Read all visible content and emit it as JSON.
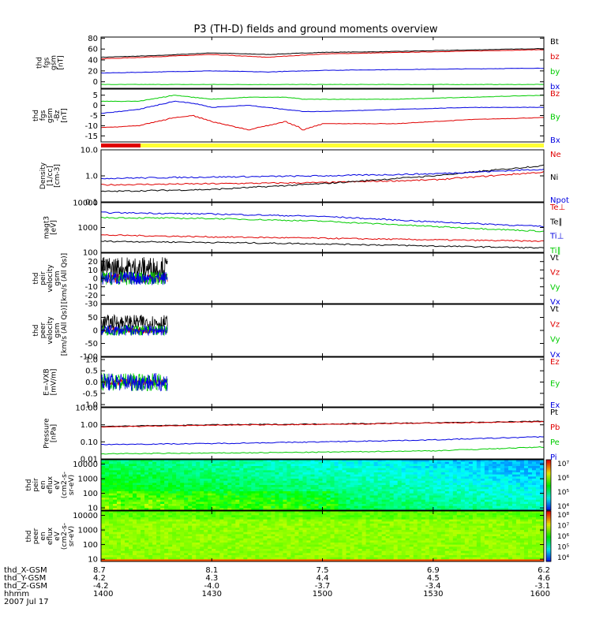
{
  "title": "P3 (TH-D) fields and ground moments overview",
  "footer": {
    "rows": [
      {
        "label": "thd_X-GSM",
        "values": [
          "8.7",
          "8.1",
          "7.5",
          "6.9",
          "6.2"
        ]
      },
      {
        "label": "thd_Y-GSM",
        "values": [
          "4.2",
          "4.3",
          "4.4",
          "4.5",
          "4.6"
        ]
      },
      {
        "label": "thd_Z-GSM",
        "values": [
          "-4.2",
          "-4.0",
          "-3.7",
          "-3.4",
          "-3.1"
        ]
      },
      {
        "label": "hhmm",
        "values": [
          "1400",
          "1430",
          "1500",
          "1530",
          "1600"
        ]
      }
    ],
    "date": "2007 Jul 17"
  },
  "colors": {
    "black": "#000000",
    "red": "#e00000",
    "green": "#00cc00",
    "blue": "#0000e0",
    "yellow": "#ffff33"
  },
  "chart_data": [
    {
      "type": "line",
      "id": "fgs-gsm",
      "ylabel": [
        "thd",
        "fgs",
        "gsm",
        "[nT]"
      ],
      "ylim": [
        -12,
        82
      ],
      "yscale": "linear",
      "yticks": [
        80,
        60,
        40,
        20,
        0
      ],
      "x": [
        1400,
        1415,
        1430,
        1445,
        1500,
        1515,
        1530,
        1545,
        1600
      ],
      "series": [
        {
          "name": "Bt",
          "color": "#000000",
          "values": [
            45,
            48,
            53,
            50,
            54,
            55,
            57,
            59,
            61
          ]
        },
        {
          "name": "bz",
          "color": "#e00000",
          "values": [
            42,
            46,
            50,
            45,
            51,
            53,
            55,
            57,
            59
          ]
        },
        {
          "name": "by",
          "color": "#00cc00",
          "values": [
            -5,
            -5,
            -5,
            -5,
            -5,
            -5,
            -5,
            -5,
            -5
          ]
        },
        {
          "name": "bx",
          "color": "#0000e0",
          "values": [
            16,
            18,
            20,
            18,
            21,
            22,
            23,
            24,
            25
          ]
        }
      ]
    },
    {
      "type": "line",
      "id": "fgs-dsl",
      "ylabel": [
        "thd",
        "fgs",
        "gsm",
        "-Bz",
        "[nT]"
      ],
      "ylim": [
        -18,
        8
      ],
      "yscale": "linear",
      "yticks": [
        5,
        0,
        -5,
        -10,
        -15
      ],
      "yticklabels": [
        "5",
        "0",
        "-5",
        "-10",
        "-15"
      ],
      "x": [
        1400,
        1410,
        1420,
        1425,
        1430,
        1440,
        1450,
        1455,
        1500,
        1520,
        1540,
        1600
      ],
      "series": [
        {
          "name": "Bz",
          "color": "#e00000",
          "values": [
            -11,
            -10,
            -6,
            -5,
            -8,
            -12,
            -8,
            -12,
            -9,
            -9,
            -7,
            -6
          ]
        },
        {
          "name": "By",
          "color": "#00cc00",
          "values": [
            2,
            2,
            5,
            4,
            3,
            4,
            4,
            3,
            3,
            3,
            4,
            5
          ]
        },
        {
          "name": "Bx",
          "color": "#0000e0",
          "values": [
            -4,
            -2,
            2,
            1,
            -1,
            0,
            -2,
            -3,
            -3,
            -2,
            -1,
            -1
          ]
        }
      ]
    },
    {
      "type": "line",
      "id": "density",
      "ylabel": [
        "Density",
        "[1/cc]",
        "[cm-3]"
      ],
      "ylim": [
        0.1,
        10
      ],
      "yscale": "log",
      "yticks": [
        10,
        1,
        0.1
      ],
      "yticklabels": [
        "10.0",
        "1.0",
        "0.1"
      ],
      "x": [
        1400,
        1430,
        1500,
        1530,
        1600
      ],
      "series": [
        {
          "name": "Ne",
          "color": "#e00000",
          "values": [
            0.45,
            0.5,
            0.55,
            0.7,
            1.4
          ]
        },
        {
          "name": "Ni",
          "color": "#000000",
          "values": [
            0.25,
            0.3,
            0.5,
            1.0,
            2.5
          ]
        },
        {
          "name": "Npot",
          "color": "#0000e0",
          "values": [
            0.8,
            0.9,
            1.0,
            1.2,
            1.8
          ]
        }
      ]
    },
    {
      "type": "line",
      "id": "temperature",
      "ylabel": [
        "magt3",
        "[eV]"
      ],
      "ylim": [
        100,
        10000
      ],
      "yscale": "log",
      "yticks": [
        10000,
        1000,
        100
      ],
      "yticklabels": [
        "10000",
        "1000",
        "100"
      ],
      "x": [
        1400,
        1430,
        1500,
        1530,
        1600
      ],
      "series": [
        {
          "name": "Te⊥",
          "color": "#e00000",
          "values": [
            500,
            420,
            370,
            320,
            280
          ]
        },
        {
          "name": "Te∥",
          "color": "#000000",
          "values": [
            280,
            250,
            220,
            180,
            150
          ]
        },
        {
          "name": "Ti⊥",
          "color": "#0000e0",
          "values": [
            4000,
            3500,
            2800,
            1700,
            1100
          ]
        },
        {
          "name": "Ti∥",
          "color": "#00cc00",
          "values": [
            2500,
            2300,
            1800,
            1100,
            700
          ]
        }
      ]
    },
    {
      "type": "line",
      "id": "peir-velocity",
      "ylabel": [
        "thd",
        "peir",
        "velocity",
        "gsm",
        "[km/s (All Qs)]"
      ],
      "ylim": [
        -30,
        30
      ],
      "yscale": "linear",
      "yticks": [
        20,
        10,
        0,
        -10,
        -20,
        -30
      ],
      "x_end": 1418,
      "series": [
        {
          "name": "Vt",
          "color": "#000000",
          "center": 12,
          "noise": 14
        },
        {
          "name": "Vz",
          "color": "#e00000",
          "center": 0,
          "noise": 5
        },
        {
          "name": "Vy",
          "color": "#00cc00",
          "center": 0,
          "noise": 8
        },
        {
          "name": "Vx",
          "color": "#0000e0",
          "center": 0,
          "noise": 8
        }
      ]
    },
    {
      "type": "line",
      "id": "peer-velocity",
      "ylabel": [
        "thd",
        "peer",
        "velocity",
        "gsm",
        "[km/s (All Qs)]"
      ],
      "ylim": [
        -100,
        100
      ],
      "yscale": "linear",
      "yticks": [
        50,
        0,
        -50,
        -100
      ],
      "x_end": 1418,
      "series": [
        {
          "name": "Vt",
          "color": "#000000",
          "center": 30,
          "noise": 30
        },
        {
          "name": "Vz",
          "color": "#e00000",
          "center": 0,
          "noise": 12
        },
        {
          "name": "Vy",
          "color": "#00cc00",
          "center": 0,
          "noise": 20
        },
        {
          "name": "Vx",
          "color": "#0000e0",
          "center": 0,
          "noise": 20
        }
      ]
    },
    {
      "type": "line",
      "id": "efield",
      "ylabel": [
        "E=-VXB",
        "[mV/m]"
      ],
      "ylim": [
        -1.1,
        1.1
      ],
      "yscale": "linear",
      "yticks": [
        1.0,
        0.5,
        0.0,
        -0.5,
        -1.0
      ],
      "yticklabels": [
        "1.0",
        "0.5",
        "0.0",
        "-0.5",
        "-1.0"
      ],
      "x_end": 1418,
      "series": [
        {
          "name": "Ez",
          "color": "#e00000",
          "center": 0,
          "noise": 0.15
        },
        {
          "name": "Ey",
          "color": "#00cc00",
          "center": 0,
          "noise": 0.4
        },
        {
          "name": "Ex",
          "color": "#0000e0",
          "center": 0,
          "noise": 0.4
        }
      ]
    },
    {
      "type": "line",
      "id": "pressure",
      "ylabel": [
        "Pressure",
        "[nPa]"
      ],
      "ylim": [
        0.01,
        10
      ],
      "yscale": "log",
      "yticks": [
        10,
        1,
        0.1,
        0.01
      ],
      "yticklabels": [
        "10.00",
        "1.00",
        "0.10",
        "0.01"
      ],
      "x": [
        1400,
        1430,
        1500,
        1530,
        1600
      ],
      "series": [
        {
          "name": "Pt",
          "color": "#000000",
          "values": [
            0.8,
            1.0,
            1.1,
            1.3,
            1.6
          ]
        },
        {
          "name": "Pb",
          "color": "#e00000",
          "values": [
            0.75,
            0.95,
            1.05,
            1.25,
            1.5
          ]
        },
        {
          "name": "Pe",
          "color": "#00cc00",
          "values": [
            0.02,
            0.022,
            0.025,
            0.03,
            0.05
          ]
        },
        {
          "name": "Pi",
          "color": "#0000e0",
          "values": [
            0.07,
            0.08,
            0.1,
            0.13,
            0.2
          ]
        }
      ]
    },
    {
      "type": "heatmap",
      "id": "peir-spectrogram",
      "ylabel": [
        "thd",
        "peir",
        "en",
        "eflux",
        "eV",
        "(cm2-s-",
        "sr-eV)"
      ],
      "ylim": [
        7,
        20000
      ],
      "yscale": "log",
      "yticks": [
        10000,
        1000,
        100,
        10
      ],
      "colorbar": {
        "ticks": [
          "10⁷",
          "10⁶",
          "10⁵",
          "10⁴"
        ]
      }
    },
    {
      "type": "heatmap",
      "id": "peer-spectrogram",
      "ylabel": [
        "thd",
        "peer",
        "en",
        "eflux",
        "eV",
        "(cm2-s-",
        "sr-eV)"
      ],
      "ylim": [
        7,
        20000
      ],
      "yscale": "log",
      "yticks": [
        10000,
        1000,
        100,
        10
      ],
      "colorbar": {
        "ticks": [
          "10⁸",
          "10⁷",
          "10⁶",
          "10⁵",
          "10⁴"
        ]
      }
    }
  ]
}
